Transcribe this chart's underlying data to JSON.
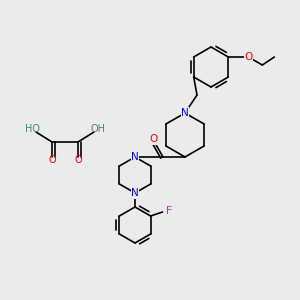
{
  "background_color": "#EBEBEB",
  "atom_colors": {
    "N": "#0000FF",
    "O": "#FF0000",
    "F": "#FF00FF",
    "C": "#000000",
    "H": "#4A7F7F"
  },
  "bond_color": "#000000",
  "bond_width": 1.2,
  "font_size_atom": 7.5,
  "font_size_small": 6.5
}
